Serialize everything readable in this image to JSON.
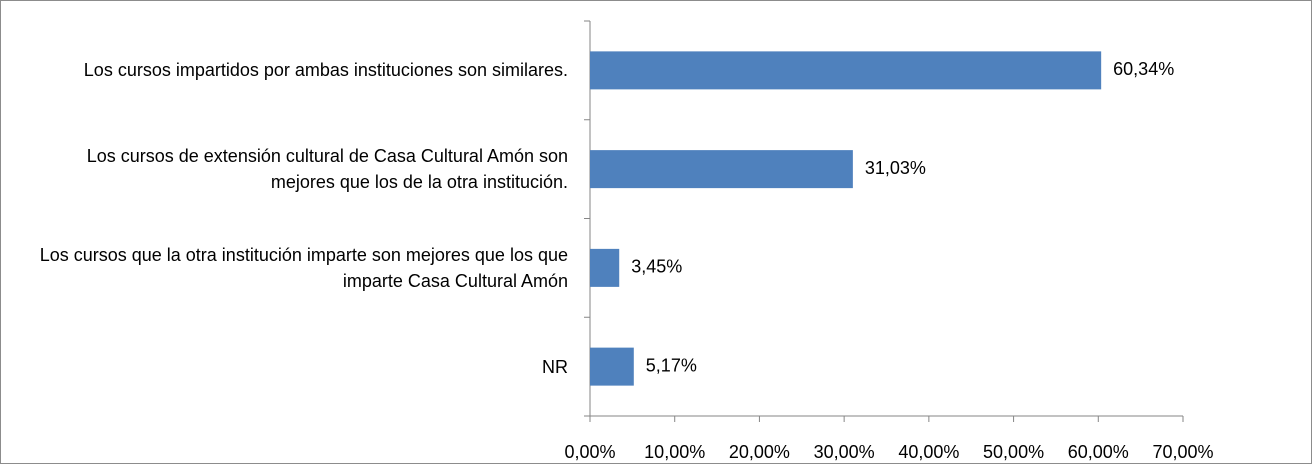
{
  "chart_data": {
    "type": "bar",
    "orientation": "horizontal",
    "categories": [
      "Los cursos impartidos por ambas instituciones son similares.",
      "Los cursos de extensión cultural de Casa Cultural Amón son mejores que los de la otra institución.",
      "Los cursos que la otra institución imparte son mejores que los que imparte Casa Cultural Amón",
      "NR"
    ],
    "values": [
      60.34,
      31.03,
      3.45,
      5.17
    ],
    "value_labels": [
      "60,34%",
      "31,03%",
      "3,45%",
      "5,17%"
    ],
    "color": "#4f81bd",
    "xlim": [
      0,
      70
    ],
    "xticks": [
      {
        "value": 0,
        "label": "0,00%"
      },
      {
        "value": 10,
        "label": "10,00%"
      },
      {
        "value": 20,
        "label": "20,00%"
      },
      {
        "value": 30,
        "label": "30,00%"
      },
      {
        "value": 40,
        "label": "40,00%"
      },
      {
        "value": 50,
        "label": "50,00%"
      },
      {
        "value": 60,
        "label": "60,00%"
      },
      {
        "value": 70,
        "label": "70,00%"
      }
    ]
  }
}
